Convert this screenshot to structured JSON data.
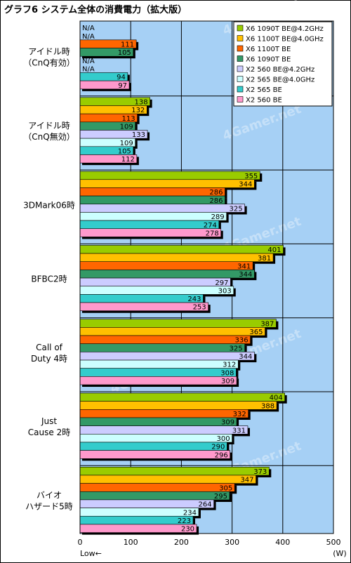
{
  "chart_data": {
    "type": "bar",
    "orientation": "horizontal",
    "title": "グラフ6  システム全体の消費電力（拡大版）",
    "xlabel_unit": "(W)",
    "xlabel_low": "Low←",
    "xlim": [
      0,
      500
    ],
    "xticks": [
      0,
      100,
      200,
      300,
      400,
      500
    ],
    "grid": true,
    "legend_position": "top-right",
    "watermark": "4Gamer.net",
    "colors": {
      "background": "#ffffff",
      "plot_area": "#a6d0f5",
      "grid": "#000000",
      "bar_shadow": "#000000"
    },
    "series": [
      {
        "name": "X6 1090T BE@4.2GHz",
        "color": "#99cc00"
      },
      {
        "name": "X6 1100T BE@4.0GHz",
        "color": "#ffc000"
      },
      {
        "name": "X6 1100T BE",
        "color": "#ff6600"
      },
      {
        "name": "X6 1090T BE",
        "color": "#339966"
      },
      {
        "name": "X2 560 BE@4.2GHz",
        "color": "#ccccff"
      },
      {
        "name": "X2 565 BE@4.0GHz",
        "color": "#ccffff"
      },
      {
        "name": "X2 565 BE",
        "color": "#33cccc"
      },
      {
        "name": "X2 560 BE",
        "color": "#ff99cc"
      }
    ],
    "categories": [
      {
        "label": [
          "アイドル時",
          "（CnQ有効）"
        ],
        "values": [
          null,
          null,
          111,
          105,
          null,
          null,
          94,
          97
        ],
        "labels": [
          "N/A",
          "N/A",
          "111",
          "105",
          "N/A",
          "N/A",
          "94",
          "97"
        ]
      },
      {
        "label": [
          "アイドル時",
          "（CnQ無効）"
        ],
        "values": [
          138,
          132,
          113,
          109,
          133,
          109,
          105,
          112
        ],
        "labels": [
          "138",
          "132",
          "113",
          "109",
          "133",
          "109",
          "105",
          "112"
        ]
      },
      {
        "label": [
          "3DMark06時"
        ],
        "values": [
          355,
          344,
          286,
          286,
          325,
          289,
          274,
          278
        ],
        "labels": [
          "355",
          "344",
          "286",
          "286",
          "325",
          "289",
          "274",
          "278"
        ]
      },
      {
        "label": [
          "BFBC2時"
        ],
        "values": [
          401,
          381,
          341,
          344,
          297,
          303,
          243,
          253
        ],
        "labels": [
          "401",
          "381",
          "341",
          "344",
          "297",
          "303",
          "243",
          "253"
        ]
      },
      {
        "label": [
          "Call of",
          "Duty 4時"
        ],
        "values": [
          387,
          365,
          336,
          325,
          344,
          312,
          308,
          309
        ],
        "labels": [
          "387",
          "365",
          "336",
          "325",
          "344",
          "312",
          "308",
          "309"
        ]
      },
      {
        "label": [
          "Just",
          "Cause 2時"
        ],
        "values": [
          404,
          388,
          332,
          309,
          331,
          300,
          290,
          296
        ],
        "labels": [
          "404",
          "388",
          "332",
          "309",
          "331",
          "300",
          "290",
          "296"
        ]
      },
      {
        "label": [
          "バイオ",
          "ハザード5時"
        ],
        "values": [
          373,
          347,
          305,
          295,
          264,
          234,
          223,
          230
        ],
        "labels": [
          "373",
          "347",
          "305",
          "295",
          "264",
          "234",
          "223",
          "230"
        ]
      }
    ]
  }
}
